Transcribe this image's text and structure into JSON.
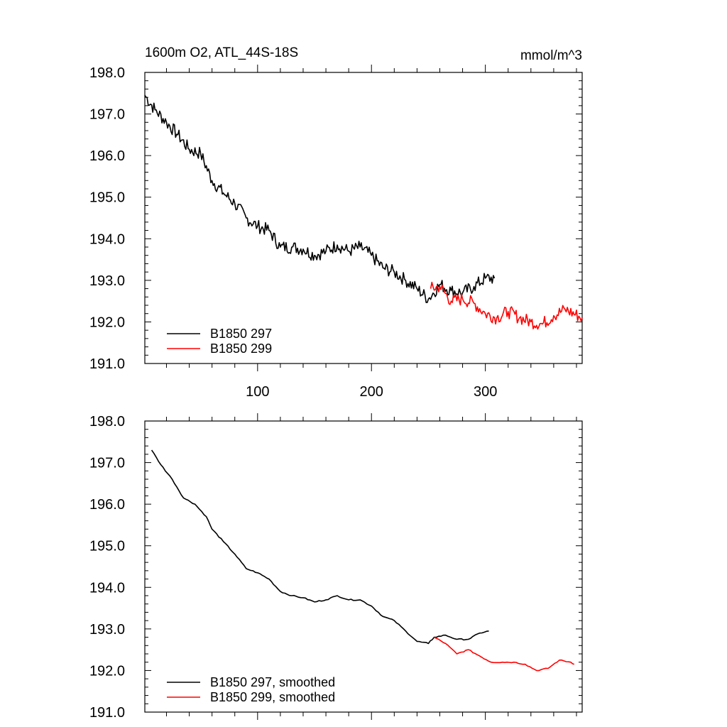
{
  "chart_data": [
    {
      "type": "line",
      "title": "1600m O2, ATL_44S-18S",
      "units": "mmol/m^3",
      "xlim": [
        1,
        385
      ],
      "ylim": [
        191.0,
        198.0
      ],
      "xticks": [
        100,
        200,
        300
      ],
      "xticklabels": [
        "100",
        "200",
        "300"
      ],
      "yticks": [
        191.0,
        192.0,
        193.0,
        194.0,
        195.0,
        196.0,
        197.0,
        198.0
      ],
      "yticklabels": [
        "191.0",
        "192.0",
        "193.0",
        "194.0",
        "195.0",
        "196.0",
        "197.0",
        "198.0"
      ],
      "legend_position": "bottom-left",
      "series": [
        {
          "name": "B1850 297",
          "color": "#000000",
          "x": [
            1,
            10,
            20,
            30,
            40,
            50,
            60,
            70,
            80,
            90,
            100,
            110,
            120,
            130,
            140,
            150,
            160,
            170,
            180,
            190,
            200,
            210,
            220,
            230,
            240,
            250,
            260,
            270,
            280,
            290,
            300,
            308
          ],
          "y": [
            197.45,
            197.1,
            196.8,
            196.5,
            196.15,
            196.05,
            195.4,
            195.1,
            194.85,
            194.5,
            194.3,
            194.2,
            193.8,
            193.8,
            193.75,
            193.6,
            193.7,
            193.85,
            193.7,
            193.8,
            193.6,
            193.3,
            193.2,
            193.0,
            192.8,
            192.55,
            192.9,
            192.75,
            192.7,
            192.85,
            193.05,
            193.05
          ]
        },
        {
          "name": "B1850 299",
          "color": "#ff0000",
          "x": [
            252,
            260,
            270,
            280,
            290,
            300,
            310,
            320,
            330,
            340,
            350,
            360,
            370,
            385
          ],
          "y": [
            192.8,
            192.85,
            192.5,
            192.55,
            192.45,
            192.2,
            192.1,
            192.25,
            192.1,
            192.0,
            191.95,
            192.15,
            192.3,
            192.1
          ]
        }
      ]
    },
    {
      "type": "line",
      "title": "",
      "xlim": [
        1,
        385
      ],
      "ylim": [
        191.0,
        198.0
      ],
      "yticks": [
        191.0,
        192.0,
        193.0,
        194.0,
        195.0,
        196.0,
        197.0,
        198.0
      ],
      "yticklabels": [
        "191.0",
        "192.0",
        "193.0",
        "194.0",
        "195.0",
        "196.0",
        "197.0",
        "198.0"
      ],
      "legend_position": "bottom-left",
      "series": [
        {
          "name": "B1850 297, smoothed",
          "color": "#000000",
          "x": [
            7,
            15,
            25,
            35,
            45,
            55,
            60,
            70,
            80,
            90,
            100,
            110,
            120,
            130,
            140,
            150,
            160,
            170,
            180,
            190,
            200,
            210,
            220,
            230,
            240,
            250,
            255,
            265,
            275,
            285,
            295,
            303
          ],
          "y": [
            197.3,
            196.95,
            196.6,
            196.15,
            196.0,
            195.7,
            195.4,
            195.1,
            194.8,
            194.45,
            194.35,
            194.2,
            193.9,
            193.8,
            193.75,
            193.65,
            193.7,
            193.8,
            193.7,
            193.7,
            193.55,
            193.3,
            193.2,
            192.95,
            192.7,
            192.65,
            192.8,
            192.85,
            192.75,
            192.75,
            192.9,
            192.95
          ]
        },
        {
          "name": "B1850 299, smoothed",
          "color": "#ff0000",
          "x": [
            255,
            265,
            275,
            285,
            295,
            305,
            315,
            325,
            335,
            345,
            355,
            365,
            375,
            378
          ],
          "y": [
            192.8,
            192.65,
            192.4,
            192.5,
            192.35,
            192.2,
            192.2,
            192.2,
            192.15,
            192.0,
            192.05,
            192.25,
            192.2,
            192.15
          ]
        }
      ]
    }
  ]
}
